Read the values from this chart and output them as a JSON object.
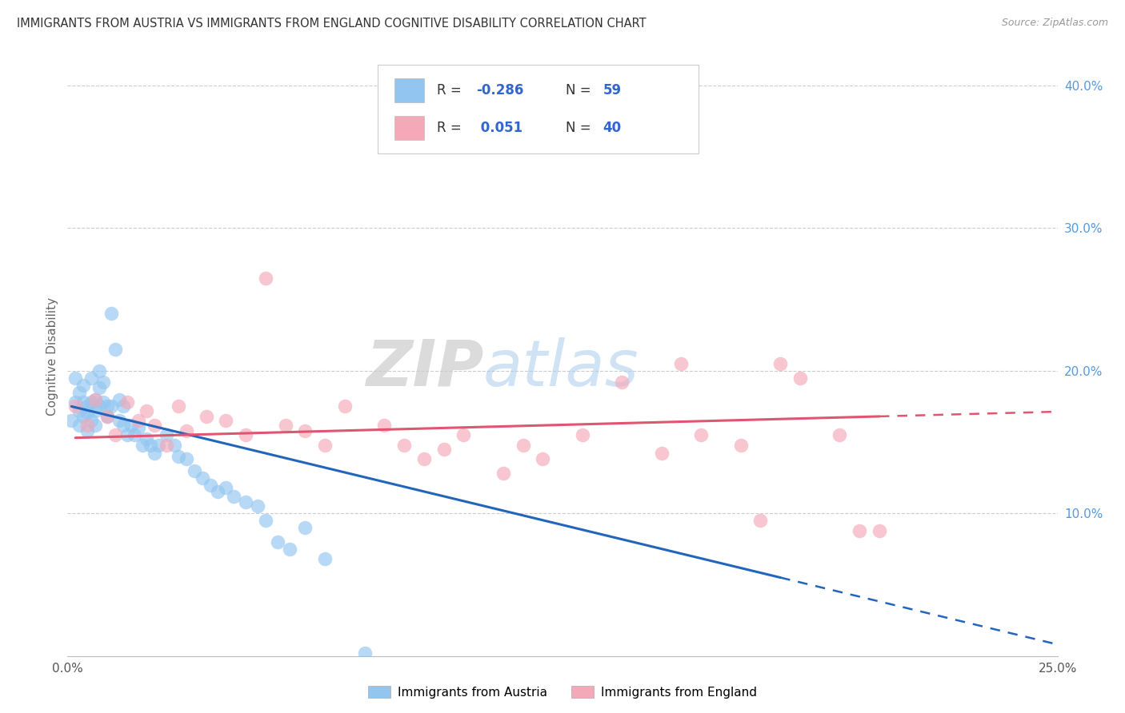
{
  "title": "IMMIGRANTS FROM AUSTRIA VS IMMIGRANTS FROM ENGLAND COGNITIVE DISABILITY CORRELATION CHART",
  "source": "Source: ZipAtlas.com",
  "ylabel": "Cognitive Disability",
  "right_yticks": [
    "40.0%",
    "30.0%",
    "20.0%",
    "10.0%"
  ],
  "right_ytick_vals": [
    0.4,
    0.3,
    0.2,
    0.1
  ],
  "austria_R": -0.286,
  "austria_N": 59,
  "england_R": 0.051,
  "england_N": 40,
  "austria_color": "#92C5F0",
  "england_color": "#F4A8B8",
  "austria_line_color": "#2266BB",
  "england_line_color": "#E05570",
  "xlim": [
    0.0,
    0.25
  ],
  "ylim": [
    0.0,
    0.42
  ],
  "austria_x": [
    0.001,
    0.002,
    0.002,
    0.003,
    0.003,
    0.003,
    0.004,
    0.004,
    0.004,
    0.005,
    0.005,
    0.005,
    0.006,
    0.006,
    0.006,
    0.007,
    0.007,
    0.007,
    0.008,
    0.008,
    0.008,
    0.009,
    0.009,
    0.01,
    0.01,
    0.011,
    0.011,
    0.012,
    0.013,
    0.013,
    0.014,
    0.014,
    0.015,
    0.016,
    0.017,
    0.018,
    0.019,
    0.02,
    0.021,
    0.022,
    0.023,
    0.025,
    0.027,
    0.028,
    0.03,
    0.032,
    0.034,
    0.036,
    0.038,
    0.04,
    0.042,
    0.045,
    0.048,
    0.05,
    0.053,
    0.056,
    0.06,
    0.065,
    0.075
  ],
  "austria_y": [
    0.165,
    0.178,
    0.195,
    0.172,
    0.185,
    0.162,
    0.168,
    0.178,
    0.19,
    0.17,
    0.175,
    0.158,
    0.178,
    0.165,
    0.195,
    0.172,
    0.18,
    0.162,
    0.2,
    0.188,
    0.175,
    0.178,
    0.192,
    0.168,
    0.175,
    0.175,
    0.24,
    0.215,
    0.165,
    0.18,
    0.162,
    0.175,
    0.155,
    0.162,
    0.155,
    0.16,
    0.148,
    0.152,
    0.148,
    0.142,
    0.148,
    0.155,
    0.148,
    0.14,
    0.138,
    0.13,
    0.125,
    0.12,
    0.115,
    0.118,
    0.112,
    0.108,
    0.105,
    0.095,
    0.08,
    0.075,
    0.09,
    0.068,
    0.002
  ],
  "england_x": [
    0.002,
    0.005,
    0.007,
    0.01,
    0.012,
    0.015,
    0.018,
    0.02,
    0.022,
    0.025,
    0.028,
    0.03,
    0.035,
    0.04,
    0.045,
    0.05,
    0.055,
    0.06,
    0.065,
    0.07,
    0.08,
    0.085,
    0.09,
    0.095,
    0.1,
    0.11,
    0.115,
    0.12,
    0.13,
    0.14,
    0.15,
    0.155,
    0.16,
    0.17,
    0.175,
    0.18,
    0.185,
    0.195,
    0.2,
    0.205
  ],
  "england_y": [
    0.175,
    0.162,
    0.18,
    0.168,
    0.155,
    0.178,
    0.165,
    0.172,
    0.162,
    0.148,
    0.175,
    0.158,
    0.168,
    0.165,
    0.155,
    0.265,
    0.162,
    0.158,
    0.148,
    0.175,
    0.162,
    0.148,
    0.138,
    0.145,
    0.155,
    0.128,
    0.148,
    0.138,
    0.155,
    0.192,
    0.142,
    0.205,
    0.155,
    0.148,
    0.095,
    0.205,
    0.195,
    0.155,
    0.088,
    0.088
  ],
  "austria_line_x0": 0.001,
  "austria_line_x1": 0.18,
  "austria_line_y0": 0.175,
  "austria_line_y1": 0.055,
  "england_line_x0": 0.002,
  "england_line_x1": 0.205,
  "england_line_y0": 0.153,
  "england_line_y1": 0.168
}
